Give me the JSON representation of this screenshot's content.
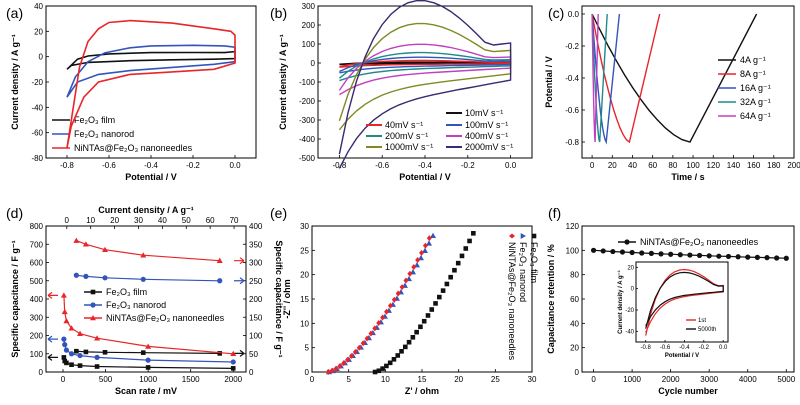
{
  "colors": {
    "black": "#111111",
    "blue": "#3355bb",
    "red": "#e8262a",
    "green": "#1f8a8a",
    "magenta": "#c040c0",
    "olive": "#808a20",
    "purple": "#3a2a70"
  },
  "chart_data": [
    {
      "panel": "(a)",
      "type": "line",
      "xlabel": "Potential / V",
      "ylabel": "Current density / A g⁻¹",
      "xlim": [
        -0.9,
        0.1
      ],
      "ylim": [
        -80,
        40
      ],
      "xticks": [
        "-0.8",
        "-0.6",
        "-0.4",
        "-0.2",
        "0.0"
      ],
      "yticks": [
        "-80",
        "-60",
        "-40",
        "-20",
        "0",
        "20",
        "40"
      ],
      "legend_position": "bottom-left",
      "series": [
        {
          "name": "Fe₂O₃ film",
          "color": "black",
          "upper": [
            [
              -0.8,
              -10
            ],
            [
              -0.75,
              -2
            ],
            [
              -0.7,
              0.5
            ],
            [
              -0.6,
              2.2
            ],
            [
              -0.4,
              3.2
            ],
            [
              -0.2,
              3.3
            ],
            [
              -0.05,
              3.2
            ],
            [
              0.0,
              4.0
            ]
          ],
          "lower": [
            [
              0.0,
              -1.5
            ],
            [
              -0.1,
              -2.0
            ],
            [
              -0.3,
              -2.5
            ],
            [
              -0.5,
              -3.2
            ],
            [
              -0.7,
              -4.5
            ],
            [
              -0.78,
              -7.0
            ],
            [
              -0.8,
              -10
            ]
          ]
        },
        {
          "name": "Fe₂O₃ nanorod",
          "color": "blue",
          "upper": [
            [
              -0.8,
              -32
            ],
            [
              -0.76,
              -16
            ],
            [
              -0.7,
              -4
            ],
            [
              -0.62,
              3
            ],
            [
              -0.5,
              7
            ],
            [
              -0.4,
              8.5
            ],
            [
              -0.2,
              9
            ],
            [
              -0.05,
              8.5
            ],
            [
              0.0,
              7.5
            ]
          ],
          "lower": [
            [
              0.0,
              -4
            ],
            [
              -0.1,
              -6
            ],
            [
              -0.3,
              -8.5
            ],
            [
              -0.5,
              -11
            ],
            [
              -0.65,
              -14
            ],
            [
              -0.75,
              -20
            ],
            [
              -0.8,
              -32
            ]
          ]
        },
        {
          "name": "NiNTAs@Fe₂O₃ nanoneedles",
          "color": "red",
          "upper": [
            [
              -0.8,
              -72
            ],
            [
              -0.77,
              -40
            ],
            [
              -0.74,
              -8
            ],
            [
              -0.7,
              12
            ],
            [
              -0.65,
              22
            ],
            [
              -0.6,
              27
            ],
            [
              -0.5,
              28.5
            ],
            [
              -0.3,
              26.5
            ],
            [
              -0.1,
              22
            ],
            [
              -0.02,
              20
            ],
            [
              0.0,
              17
            ]
          ],
          "lower": [
            [
              0.0,
              -5
            ],
            [
              -0.1,
              -10
            ],
            [
              -0.3,
              -12
            ],
            [
              -0.5,
              -14
            ],
            [
              -0.65,
              -20
            ],
            [
              -0.72,
              -32
            ],
            [
              -0.78,
              -55
            ],
            [
              -0.8,
              -72
            ]
          ]
        }
      ]
    },
    {
      "panel": "(b)",
      "type": "line",
      "xlabel": "Potential / V",
      "ylabel": "Current density / A g⁻¹",
      "xlim": [
        -0.9,
        0.1
      ],
      "ylim": [
        -500,
        300
      ],
      "xticks": [
        "-0.8",
        "-0.6",
        "-0.4",
        "-0.2",
        "0.0"
      ],
      "yticks": [
        "-500",
        "-400",
        "-300",
        "-200",
        "-100",
        "0",
        "100",
        "200",
        "300"
      ],
      "legend_position": "bottom-right",
      "series": [
        {
          "name": "10mV s⁻¹",
          "color": "black",
          "amplitude": 4
        },
        {
          "name": "40mV s⁻¹",
          "color": "red",
          "amplitude": 12
        },
        {
          "name": "100mV s⁻¹",
          "color": "blue",
          "amplitude": 28
        },
        {
          "name": "200mV s⁻¹",
          "color": "green",
          "amplitude": 50
        },
        {
          "name": "400mV s⁻¹",
          "color": "magenta",
          "amplitude": 90
        },
        {
          "name": "1000mV s⁻¹",
          "color": "olive",
          "amplitude": 190
        },
        {
          "name": "2000mV s⁻¹",
          "color": "purple",
          "amplitude": 300
        }
      ]
    },
    {
      "panel": "(c)",
      "type": "line",
      "xlabel": "Time / s",
      "ylabel": "Potential / V",
      "xlim": [
        -10,
        200
      ],
      "ylim": [
        -0.9,
        0.05
      ],
      "xticks": [
        "0",
        "20",
        "40",
        "60",
        "80",
        "100",
        "120",
        "140",
        "160",
        "180",
        "200"
      ],
      "yticks": [
        "-0.8",
        "-0.6",
        "-0.4",
        "-0.2",
        "0.0"
      ],
      "legend_position": "right",
      "series": [
        {
          "name": "4A g⁻¹",
          "color": "black",
          "t_discharge": 97,
          "t_end": 163
        },
        {
          "name": "8A g⁻¹",
          "color": "red",
          "t_discharge": 37,
          "t_end": 67
        },
        {
          "name": "16A g⁻¹",
          "color": "blue",
          "t_discharge": 14,
          "t_end": 27
        },
        {
          "name": "32A g⁻¹",
          "color": "green",
          "t_discharge": 7.5,
          "t_end": 15
        },
        {
          "name": "64A g⁻¹",
          "color": "magenta",
          "t_discharge": 3,
          "t_end": 6
        }
      ]
    },
    {
      "panel": "(d)",
      "type": "scatter",
      "xlabel": "Scan rate / mV",
      "ylabel": "Specific capacitance / F g⁻¹",
      "x2label": "Current density / A g⁻¹",
      "y2label": "Specific capacitance / F g⁻¹",
      "xlim": [
        -200,
        2150
      ],
      "ylim": [
        0,
        800
      ],
      "x2lim": [
        -8.7,
        75
      ],
      "y2lim": [
        0,
        400
      ],
      "xticks": [
        "0",
        "500",
        "1000",
        "1500",
        "2000"
      ],
      "yticks": [
        "0",
        "100",
        "200",
        "300",
        "400",
        "500",
        "600",
        "700",
        "800"
      ],
      "x2ticks": [
        "0",
        "10",
        "20",
        "30",
        "40",
        "50",
        "60",
        "70"
      ],
      "y2ticks": [
        "0",
        "50",
        "100",
        "150",
        "200",
        "250",
        "300",
        "350",
        "400"
      ],
      "legend_position": "center",
      "series": [
        {
          "name": "Fe₂O₃ film",
          "color": "black",
          "scan": [
            [
              10,
              80
            ],
            [
              20,
              60
            ],
            [
              40,
              50
            ],
            [
              100,
              40
            ],
            [
              200,
              35
            ],
            [
              400,
              30
            ],
            [
              1000,
              25
            ],
            [
              2000,
              20
            ]
          ],
          "current": [
            [
              4,
              57
            ],
            [
              8,
              55
            ],
            [
              16,
              54
            ],
            [
              32,
              53
            ],
            [
              64,
              51
            ]
          ]
        },
        {
          "name": "Fe₂O₃ nanorod",
          "color": "blue",
          "scan": [
            [
              10,
              180
            ],
            [
              20,
              150
            ],
            [
              40,
              120
            ],
            [
              100,
              100
            ],
            [
              200,
              90
            ],
            [
              400,
              80
            ],
            [
              1000,
              65
            ],
            [
              2000,
              55
            ]
          ],
          "current": [
            [
              4,
              265
            ],
            [
              8,
              262
            ],
            [
              16,
              258
            ],
            [
              32,
              254
            ],
            [
              64,
              250
            ]
          ]
        },
        {
          "name": "NiNTAs@Fe₂O₃ nanoneedles",
          "color": "red",
          "scan": [
            [
              10,
              420
            ],
            [
              20,
              330
            ],
            [
              40,
              280
            ],
            [
              100,
              240
            ],
            [
              200,
              210
            ],
            [
              400,
              185
            ],
            [
              1000,
              140
            ],
            [
              2000,
              100
            ]
          ],
          "current": [
            [
              4,
              360
            ],
            [
              8,
              350
            ],
            [
              16,
              335
            ],
            [
              32,
              320
            ],
            [
              64,
              305
            ]
          ]
        }
      ]
    },
    {
      "panel": "(e)",
      "type": "scatter",
      "xlabel": "Z' / ohm",
      "ylabel": "-Z'' / ohm",
      "xlim": [
        0,
        30
      ],
      "ylim": [
        0,
        30
      ],
      "xticks": [
        "0",
        "5",
        "10",
        "15",
        "20",
        "25",
        "30"
      ],
      "yticks": [
        "0",
        "5",
        "10",
        "15",
        "20",
        "25",
        "30"
      ],
      "legend_position": "right, rotated",
      "series": [
        {
          "name": "Fe₂O₃ film",
          "color": "black",
          "start": 8.6,
          "end": [
            22,
            28.5
          ],
          "kind": "square"
        },
        {
          "name": "Fe₂O₃ nanorod",
          "color": "blue",
          "start": 2.3,
          "end": [
            16.5,
            28
          ],
          "kind": "triangle"
        },
        {
          "name": "NiNTAs@Fe₂O₃ nanoneedles",
          "color": "red",
          "start": 2.2,
          "end": [
            16,
            27.5
          ],
          "kind": "diamond"
        }
      ]
    },
    {
      "panel": "(f)",
      "type": "scatter",
      "xlabel": "Cycle number",
      "ylabel": "Capacitance retention / %",
      "xlim": [
        -300,
        5200
      ],
      "ylim": [
        0,
        120
      ],
      "xticks": [
        "0",
        "1000",
        "2000",
        "3000",
        "4000",
        "5000"
      ],
      "yticks": [
        "0",
        "20",
        "40",
        "60",
        "80",
        "100",
        "120"
      ],
      "legend_position": "top-right",
      "series": [
        {
          "name": "NiNTAs@Fe₂O₃ nanoneedles",
          "color": "black",
          "points": [
            [
              0,
              100
            ],
            [
              250,
              99.5
            ],
            [
              500,
              99
            ],
            [
              750,
              98.6
            ],
            [
              1000,
              98.2
            ],
            [
              1250,
              97.8
            ],
            [
              1500,
              97.5
            ],
            [
              1750,
              97.1
            ],
            [
              2000,
              96.8
            ],
            [
              2250,
              96.4
            ],
            [
              2500,
              96.1
            ],
            [
              2750,
              95.8
            ],
            [
              3000,
              95.5
            ],
            [
              3250,
              95.2
            ],
            [
              3500,
              95
            ],
            [
              3750,
              94.7
            ],
            [
              4000,
              94.4
            ],
            [
              4250,
              94.2
            ],
            [
              4500,
              94
            ],
            [
              4750,
              93.7
            ],
            [
              5000,
              93.5
            ]
          ]
        }
      ],
      "inset": {
        "xlabel": "Potential / V",
        "ylabel": "Current density / A g⁻¹",
        "xlim": [
          -0.9,
          0.05
        ],
        "ylim": [
          -50,
          25
        ],
        "xticks": [
          "-0.8",
          "-0.6",
          "-0.4",
          "-0.2",
          "0.0"
        ],
        "yticks": [
          "-40",
          "-20",
          "0",
          "20"
        ],
        "series": [
          {
            "name": "1st",
            "color": "red",
            "amp": 1.0
          },
          {
            "name": "5000th",
            "color": "black",
            "amp": 0.85
          }
        ]
      }
    }
  ],
  "labels": {
    "a": "(a)",
    "b": "(b)",
    "c": "(c)",
    "d": "(d)",
    "e": "(e)",
    "f": "(f)"
  }
}
